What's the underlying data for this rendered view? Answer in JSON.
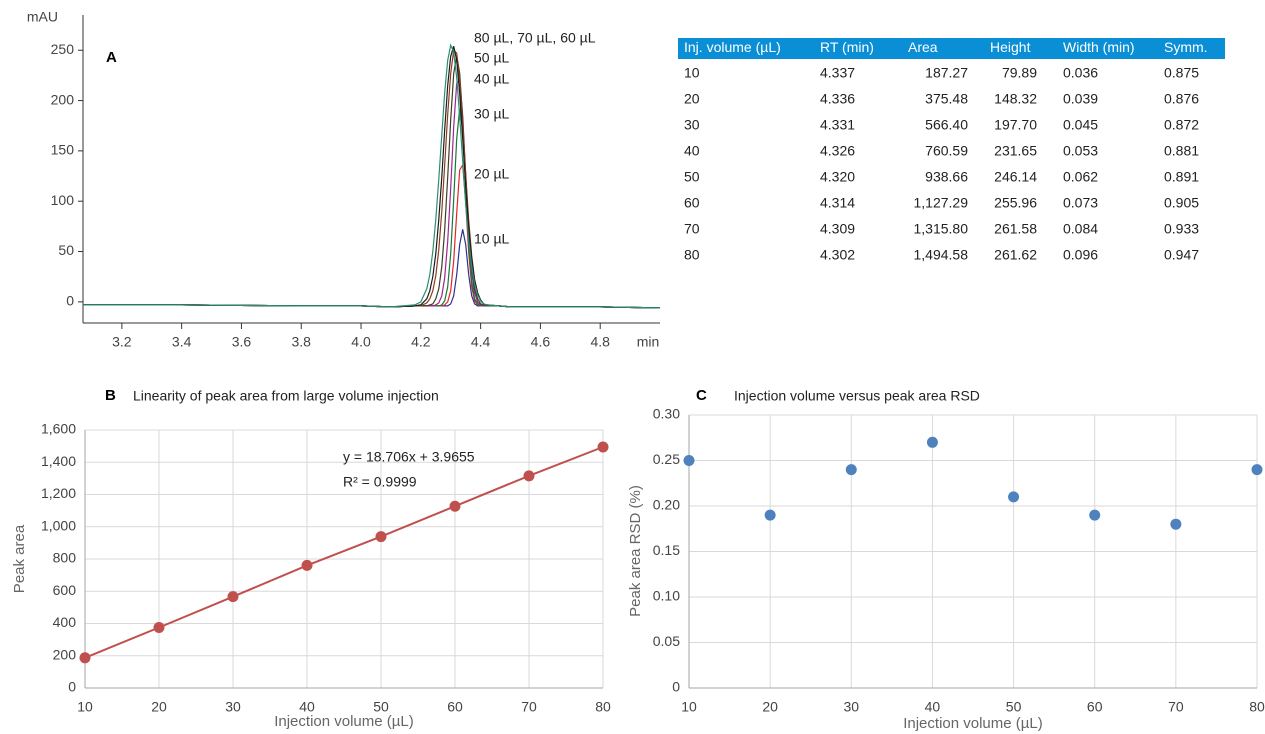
{
  "chart_data": [
    {
      "type": "line",
      "label": "A",
      "xlabel": "min",
      "ylabel": "mAU",
      "xlim": [
        3.07,
        5.0
      ],
      "xticks": [
        3.2,
        3.4,
        3.6,
        3.8,
        {
          "value": 4,
          "label": "4.0"
        },
        4.2,
        4.4,
        4.6,
        4.8
      ],
      "ylim": [
        -21,
        285
      ],
      "yticks": [
        0,
        50,
        100,
        150,
        200,
        250
      ],
      "grid": false,
      "x": [
        3.07,
        3.4,
        3.8,
        4.0,
        4.1,
        4.18,
        4.2,
        4.22,
        4.23,
        4.24,
        4.25,
        4.26,
        4.27,
        4.28,
        4.29,
        4.3,
        4.31,
        4.32,
        4.33,
        4.34,
        4.35,
        4.36,
        4.37,
        4.38,
        4.39,
        4.4,
        4.41,
        4.42,
        4.46,
        4.5,
        4.8,
        5.0
      ],
      "series": [
        {
          "color": "#2e3192",
          "values": [
            -3,
            -3,
            -4,
            -4,
            -5,
            -4,
            -4,
            -4,
            -4,
            -4,
            -4,
            -4,
            -4,
            -4,
            -4,
            -2,
            6,
            27,
            57,
            72,
            57,
            27,
            6,
            -2,
            -4,
            -4,
            -4,
            -4,
            -4,
            -5,
            -5,
            -6
          ]
        },
        {
          "color": "#e0262b",
          "values": [
            -3,
            -3,
            -4,
            -4,
            -5,
            -4,
            -4,
            -4,
            -4,
            -4,
            -4,
            -4,
            -4,
            -3,
            0,
            11,
            41,
            88,
            131,
            136,
            99,
            49,
            15,
            1,
            -3,
            -4,
            -4,
            -4,
            -4,
            -5,
            -5,
            -6
          ]
        },
        {
          "color": "#137a3b",
          "values": [
            -3,
            -3,
            -4,
            -4,
            -5,
            -4,
            -4,
            -4,
            -4,
            -4,
            -4,
            -4,
            -3,
            1,
            15,
            48,
            102,
            162,
            192,
            171,
            115,
            57,
            20,
            3,
            -2,
            -4,
            -4,
            -4,
            -4,
            -5,
            -5,
            -6
          ]
        },
        {
          "color": "#a0248f",
          "values": [
            -3,
            -3,
            -4,
            -4,
            -5,
            -4,
            -4,
            -4,
            -4,
            -4,
            -3,
            -1,
            6,
            24,
            60,
            113,
            174,
            217,
            221,
            185,
            126,
            69,
            30,
            9,
            0,
            -3,
            -4,
            -4,
            -4,
            -5,
            -5,
            -6
          ]
        },
        {
          "color": "#3d3d2a",
          "values": [
            -3,
            -3,
            -4,
            -4,
            -5,
            -4,
            -4,
            -4,
            -3,
            -2,
            3,
            13,
            35,
            72,
            124,
            181,
            227,
            245,
            227,
            181,
            124,
            72,
            35,
            13,
            3,
            -2,
            -3,
            -4,
            -4,
            -5,
            -5,
            -6
          ]
        },
        {
          "color": "#8a3d1f",
          "values": [
            -3,
            -3,
            -4,
            -4,
            -5,
            -4,
            -4,
            -1,
            3,
            11,
            26,
            52,
            90,
            136,
            186,
            227,
            250,
            247,
            220,
            176,
            127,
            81,
            46,
            22,
            9,
            1,
            -2,
            -3,
            -4,
            -5,
            -5,
            -6
          ]
        },
        {
          "color": "#1b1b1b",
          "values": [
            -3,
            -3,
            -4,
            -4,
            -5,
            -4,
            -3,
            3,
            11,
            25,
            48,
            82,
            124,
            171,
            215,
            244,
            254,
            240,
            207,
            162,
            115,
            74,
            43,
            22,
            9,
            2,
            -2,
            -3,
            -4,
            -5,
            -5,
            -6
          ]
        },
        {
          "color": "#2a8f6f",
          "values": [
            -3,
            -3,
            -4,
            -4,
            -5,
            -3,
            0,
            13,
            27,
            50,
            82,
            122,
            166,
            208,
            240,
            255,
            248,
            223,
            184,
            140,
            97,
            62,
            35,
            18,
            7,
            1,
            -2,
            -3,
            -4,
            -5,
            -5,
            -6
          ]
        }
      ],
      "annotations": [
        "80 µL, 70 µL, 60 µL",
        "50 µL",
        "40 µL",
        "30 µL",
        "20 µL",
        "10 µL"
      ]
    },
    {
      "type": "scatter",
      "label": "B",
      "title": "Linearity of peak area from large volume injection",
      "xlabel": "Injection volume (µL)",
      "ylabel": "Peak area",
      "xlim": [
        10,
        80
      ],
      "xticks": [
        10,
        20,
        30,
        40,
        50,
        60,
        70,
        80
      ],
      "ylim": [
        0,
        1600
      ],
      "yticks": [
        0,
        200,
        400,
        600,
        800,
        {
          "value": 1000,
          "label": "1,000"
        },
        {
          "value": 1200,
          "label": "1,200"
        },
        {
          "value": 1400,
          "label": "1,400"
        },
        {
          "value": 1600,
          "label": "1,600"
        }
      ],
      "grid": true,
      "line": true,
      "color": "#c0504d",
      "x": [
        10,
        20,
        30,
        40,
        50,
        60,
        70,
        80
      ],
      "values": [
        187.27,
        375.48,
        566.4,
        760.59,
        938.66,
        1127.29,
        1315.8,
        1494.58
      ],
      "annotations": [
        "y = 18.706x + 3.9655",
        "R² = 0.9999"
      ]
    },
    {
      "type": "scatter",
      "label": "C",
      "title": "Injection volume versus peak area RSD",
      "xlabel": "Injection volume (µL)",
      "ylabel": "Peak area RSD (%)",
      "xlim": [
        10,
        80
      ],
      "xticks": [
        10,
        20,
        30,
        40,
        50,
        60,
        70,
        80
      ],
      "ylim": [
        0,
        0.3
      ],
      "yticks": [
        0,
        0.05,
        {
          "value": 0.1,
          "label": "0.10"
        },
        0.15,
        {
          "value": 0.2,
          "label": "0.20"
        },
        0.25,
        {
          "value": 0.3,
          "label": "0.30"
        }
      ],
      "grid": true,
      "line": false,
      "color": "#4f81bd",
      "x": [
        10,
        20,
        30,
        40,
        50,
        60,
        70,
        80
      ],
      "values": [
        0.25,
        0.19,
        0.24,
        0.27,
        0.21,
        0.19,
        0.18,
        0.24
      ]
    }
  ],
  "table": {
    "columns": [
      "Inj. volume (µL)",
      "RT (min)",
      "Area",
      "Height",
      "Width (min)",
      "Symm."
    ],
    "rows": [
      [
        "10",
        "4.337",
        "187.27",
        "79.89",
        "0.036",
        "0.875"
      ],
      [
        "20",
        "4.336",
        "375.48",
        "148.32",
        "0.039",
        "0.876"
      ],
      [
        "30",
        "4.331",
        "566.40",
        "197.70",
        "0.045",
        "0.872"
      ],
      [
        "40",
        "4.326",
        "760.59",
        "231.65",
        "0.053",
        "0.881"
      ],
      [
        "50",
        "4.320",
        "938.66",
        "246.14",
        "0.062",
        "0.891"
      ],
      [
        "60",
        "4.314",
        "1,127.29",
        "255.96",
        "0.073",
        "0.905"
      ],
      [
        "70",
        "4.309",
        "1,315.80",
        "261.58",
        "0.084",
        "0.933"
      ],
      [
        "80",
        "4.302",
        "1,494.58",
        "261.62",
        "0.096",
        "0.947"
      ]
    ]
  }
}
